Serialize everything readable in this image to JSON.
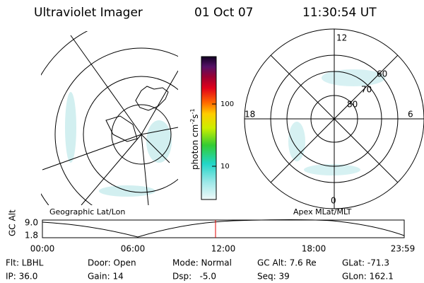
{
  "header": {
    "title": "Ultraviolet Imager",
    "date": "01 Oct 07",
    "time": "11:30:54 UT"
  },
  "colorbar": {
    "unit": "photon cm",
    "exp1": "-2",
    "unit2": "s",
    "exp2": "-1",
    "ticks": [
      "100",
      "10"
    ]
  },
  "polar": {
    "clock": [
      "12",
      "18",
      "6",
      "0"
    ],
    "lat": [
      "60",
      "70",
      "80"
    ]
  },
  "labels": {
    "geo": "Geographic Lat/Lon",
    "apex": "Apex MLat/MLT"
  },
  "altitude": {
    "ylabel": "GC Alt",
    "yticks": [
      "9.0",
      "1.8"
    ],
    "xticks": [
      "00:00",
      "06:00",
      "12:00",
      "18:00",
      "23:59"
    ]
  },
  "footer": [
    [
      "Flt: LBHL",
      "Door: Open",
      "Mode: Normal",
      "GC Alt: 7.6 Re",
      "GLat: -71.3"
    ],
    [
      "IP: 36.0",
      "Gain: 14",
      "Dsp:   -5.0",
      "Seq: 39",
      "GLon: 162.1"
    ]
  ]
}
